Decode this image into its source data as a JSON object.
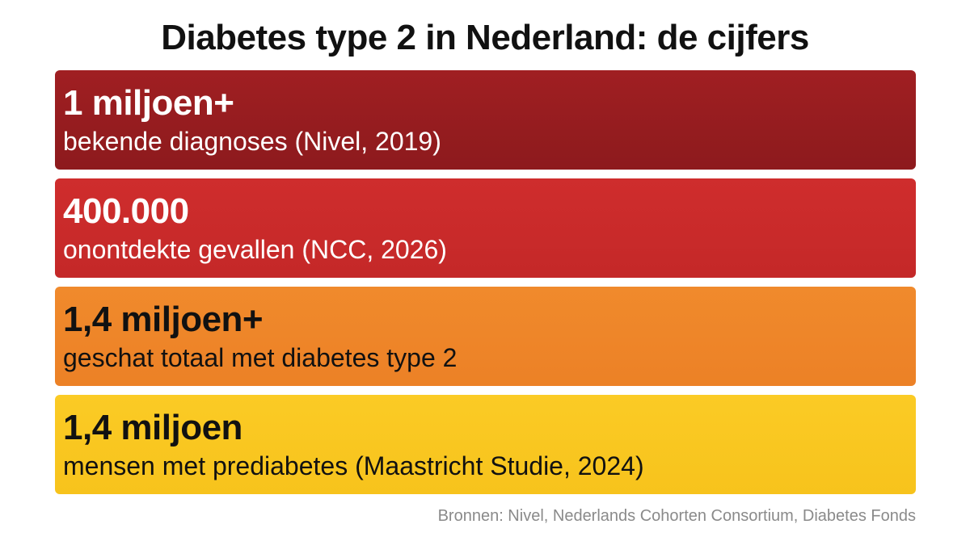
{
  "title": "Diabetes type 2 in Nederland: de cijfers",
  "stats": [
    {
      "value": "1 miljoen+",
      "label": "bekende diagnoses (Nivel, 2019)",
      "color": "#961c1f",
      "text_color": "#ffffff"
    },
    {
      "value": "400.000",
      "label": "onontdekte gevallen (NCC, 2026)",
      "color": "#c92a2a",
      "text_color": "#ffffff"
    },
    {
      "value": "1,4 miljoen+",
      "label": "geschat totaal met diabetes type 2",
      "color": "#ee852a",
      "text_color": "#111111"
    },
    {
      "value": "1,4 miljoen",
      "label": "mensen met prediabetes (Maastricht Studie, 2024)",
      "color": "#f9c720",
      "text_color": "#111111"
    }
  ],
  "sources": "Bronnen: Nivel, Nederlands Cohorten Consortium, Diabetes Fonds"
}
